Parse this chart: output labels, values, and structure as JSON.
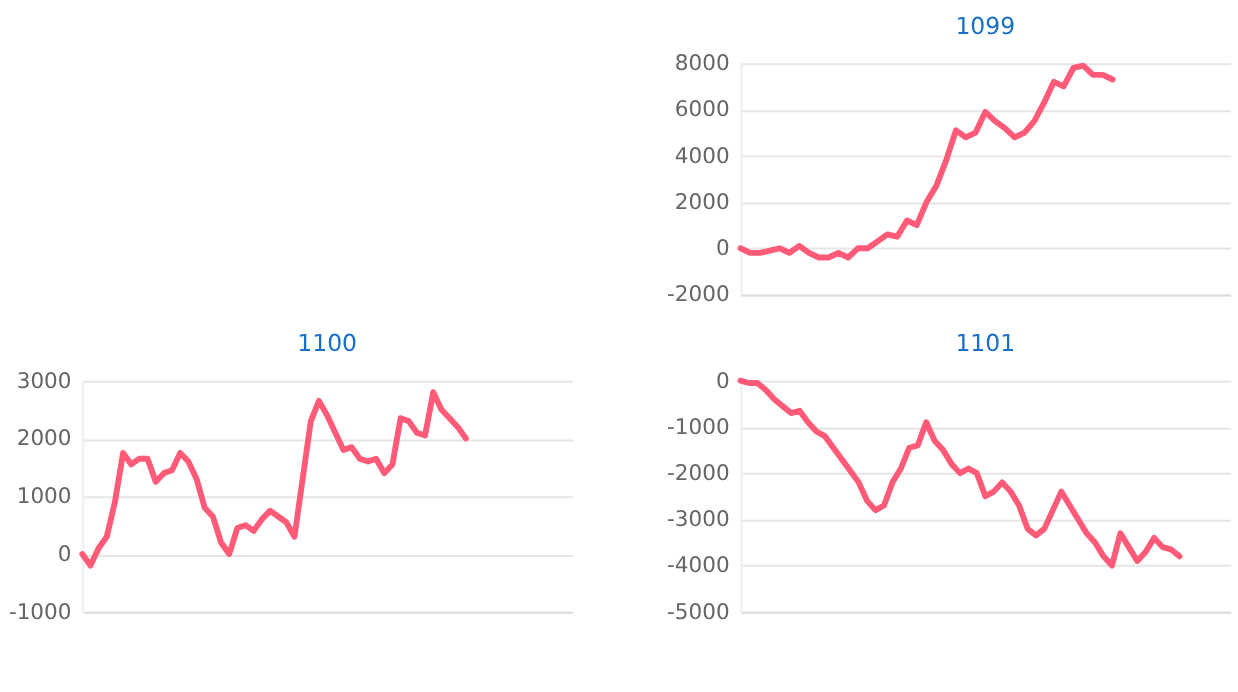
{
  "chart_data": [
    {
      "type": "line",
      "title": "1099",
      "categories": [
        null,
        null,
        null,
        null,
        null,
        null,
        null,
        null,
        null,
        null,
        null,
        null,
        null,
        null,
        null,
        null,
        null,
        null,
        null,
        null,
        null,
        null,
        null,
        null,
        null,
        null,
        null,
        null,
        null,
        null,
        null,
        null,
        null,
        null,
        null,
        null,
        null,
        null,
        null,
        null,
        null,
        null,
        null,
        null,
        null,
        null,
        null,
        null,
        null,
        null,
        null
      ],
      "series": [
        {
          "color": "#ff5a78",
          "values": [
            0,
            -200,
            -200,
            -100,
            0,
            -200,
            100,
            -200,
            -400,
            -400,
            -200,
            -400,
            0,
            0,
            300,
            600,
            500,
            1200,
            1000,
            2000,
            2700,
            3800,
            5100,
            4800,
            5000,
            5900,
            5500,
            5200,
            4800,
            5000,
            5500,
            6300,
            7200,
            7000,
            7800,
            7900,
            7500,
            7500,
            7300,
            null,
            null,
            null,
            null,
            null,
            null,
            null,
            null,
            null,
            null,
            null,
            null
          ]
        }
      ],
      "ylim": [
        -2000,
        8000
      ],
      "yticks": [
        -2000,
        0,
        2000,
        4000,
        6000,
        8000
      ],
      "grid": "y",
      "tick_labels": "y",
      "marker": "none",
      "line_style": "solid"
    },
    {
      "type": "line",
      "title": "1100",
      "categories": [
        null,
        null,
        null,
        null,
        null,
        null,
        null,
        null,
        null,
        null,
        null,
        null,
        null,
        null,
        null,
        null,
        null,
        null,
        null,
        null,
        null,
        null,
        null,
        null,
        null,
        null,
        null,
        null,
        null,
        null,
        null,
        null,
        null,
        null,
        null,
        null,
        null,
        null,
        null,
        null,
        null,
        null,
        null,
        null,
        null,
        null,
        null,
        null,
        null,
        null,
        null,
        null,
        null,
        null,
        null,
        null,
        null,
        null,
        null,
        null,
        null
      ],
      "series": [
        {
          "color": "#ff5a78",
          "values": [
            0,
            -200,
            100,
            300,
            900,
            1750,
            1550,
            1650,
            1650,
            1250,
            1400,
            1450,
            1750,
            1600,
            1300,
            800,
            650,
            200,
            0,
            450,
            500,
            400,
            600,
            750,
            650,
            550,
            300,
            1300,
            2300,
            2650,
            2400,
            2100,
            1800,
            1850,
            1650,
            1600,
            1650,
            1400,
            1550,
            2350,
            2300,
            2100,
            2050,
            2800,
            2500,
            2350,
            2200,
            2000,
            null,
            null,
            null,
            null,
            null,
            null,
            null,
            null,
            null,
            null,
            null,
            null,
            null
          ]
        }
      ],
      "ylim": [
        -1000,
        3000
      ],
      "yticks": [
        -1000,
        0,
        1000,
        2000,
        3000
      ],
      "grid": "y",
      "tick_labels": "y",
      "marker": "none",
      "line_style": "solid"
    },
    {
      "type": "line",
      "title": "1101",
      "categories": [
        null,
        null,
        null,
        null,
        null,
        null,
        null,
        null,
        null,
        null,
        null,
        null,
        null,
        null,
        null,
        null,
        null,
        null,
        null,
        null,
        null,
        null,
        null,
        null,
        null,
        null,
        null,
        null,
        null,
        null,
        null,
        null,
        null,
        null,
        null,
        null,
        null,
        null,
        null,
        null,
        null,
        null,
        null,
        null,
        null,
        null,
        null,
        null,
        null,
        null,
        null,
        null,
        null,
        null,
        null,
        null,
        null,
        null,
        null
      ],
      "series": [
        {
          "color": "#ff5a78",
          "values": [
            0,
            -50,
            -50,
            -200,
            -400,
            -550,
            -700,
            -650,
            -900,
            -1100,
            -1200,
            -1450,
            -1700,
            -1950,
            -2200,
            -2600,
            -2800,
            -2700,
            -2200,
            -1900,
            -1450,
            -1400,
            -900,
            -1300,
            -1500,
            -1800,
            -2000,
            -1900,
            -2000,
            -2500,
            -2400,
            -2200,
            -2400,
            -2700,
            -3200,
            -3350,
            -3200,
            -2800,
            -2400,
            -2700,
            -3000,
            -3300,
            -3500,
            -3800,
            -4000,
            -3300,
            -3600,
            -3900,
            -3700,
            -3400,
            -3600,
            -3650,
            -3800,
            null,
            null,
            null,
            null,
            null,
            null
          ]
        }
      ],
      "ylim": [
        -5000,
        0
      ],
      "yticks": [
        -5000,
        -4000,
        -3000,
        -2000,
        -1000,
        0
      ],
      "grid": "y",
      "tick_labels": "y",
      "marker": "none",
      "line_style": "solid"
    }
  ]
}
